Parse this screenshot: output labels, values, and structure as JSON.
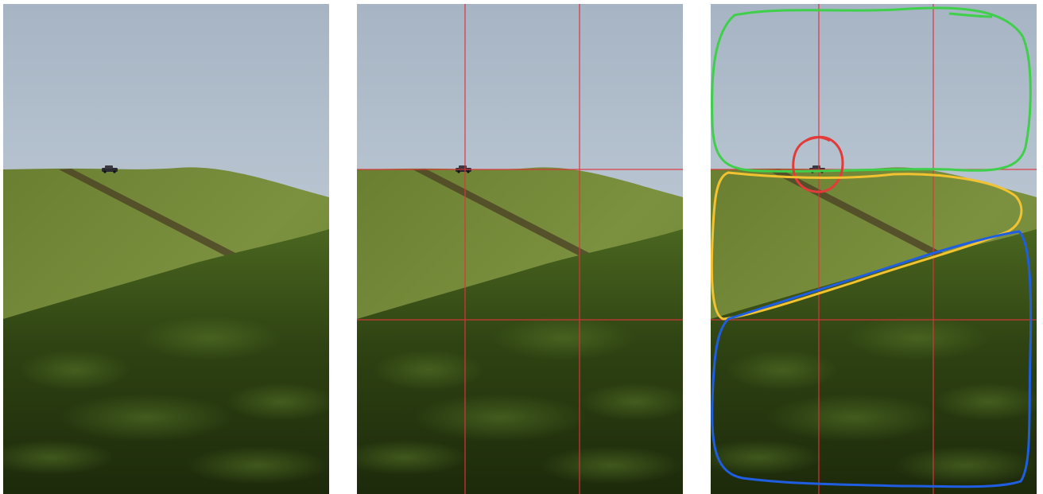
{
  "panels": [
    {
      "name": "original-photo",
      "shows_grid": false,
      "shows_annotations": false
    },
    {
      "name": "rule-of-thirds-photo",
      "shows_grid": true,
      "shows_annotations": false
    },
    {
      "name": "annotated-regions-photo",
      "shows_grid": true,
      "shows_annotations": true
    }
  ],
  "colors": {
    "sky_top": "#a6b4c4",
    "sky_bottom": "#d3dde3",
    "hill_light": "#7a8e3c",
    "hill_dark": "#566b28",
    "foreground_grass_top": "#3f5a1c",
    "foreground_grass_bottom": "#1f2e0c",
    "grid_line": "#e0323c",
    "annotation_sky": "#3fcf4a",
    "annotation_car": "#e33a3a",
    "annotation_hill": "#f2c230",
    "annotation_grass": "#1f5ee0"
  },
  "icons": {
    "car": "car-icon"
  }
}
